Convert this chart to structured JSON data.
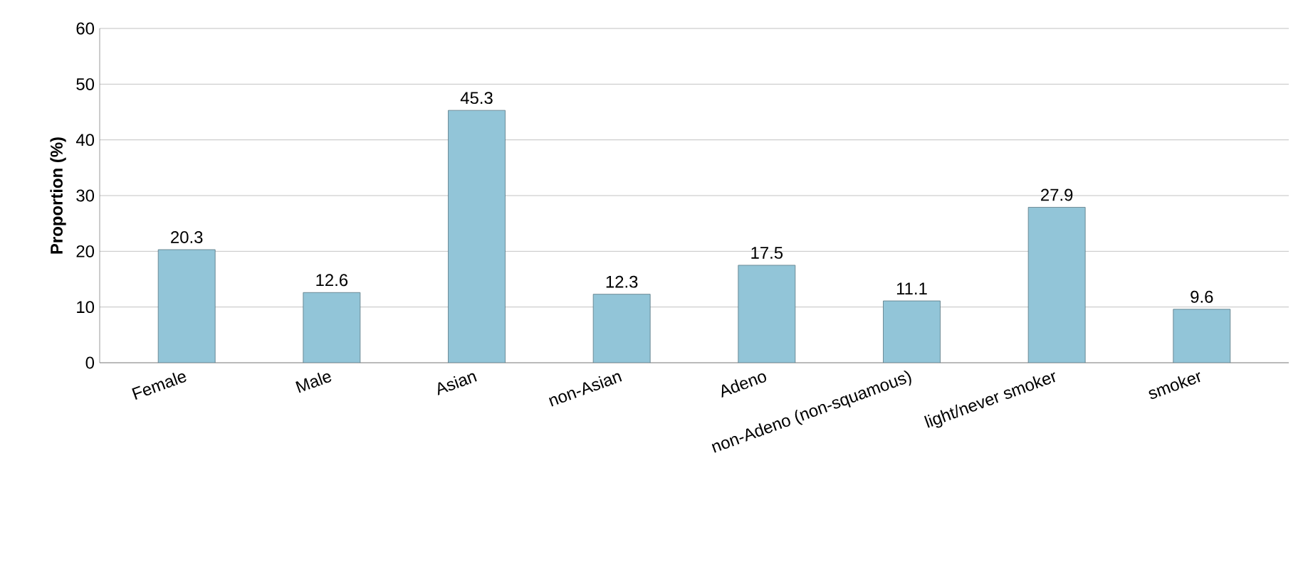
{
  "chart_data": {
    "type": "bar",
    "ylabel": "Proportion (%)",
    "categories": [
      "Female",
      "Male",
      "Asian",
      "non-Asian",
      "Adeno",
      "non-Adeno (non-squamous)",
      "light/never smoker",
      "smoker"
    ],
    "values": [
      20.3,
      12.6,
      45.3,
      12.3,
      17.5,
      11.1,
      27.9,
      9.6
    ],
    "color": "#92c5d8",
    "ylim": [
      0,
      60
    ],
    "yticks": [
      0,
      10,
      20,
      30,
      40,
      50,
      60
    ],
    "grid": "y",
    "data_labels": true
  }
}
